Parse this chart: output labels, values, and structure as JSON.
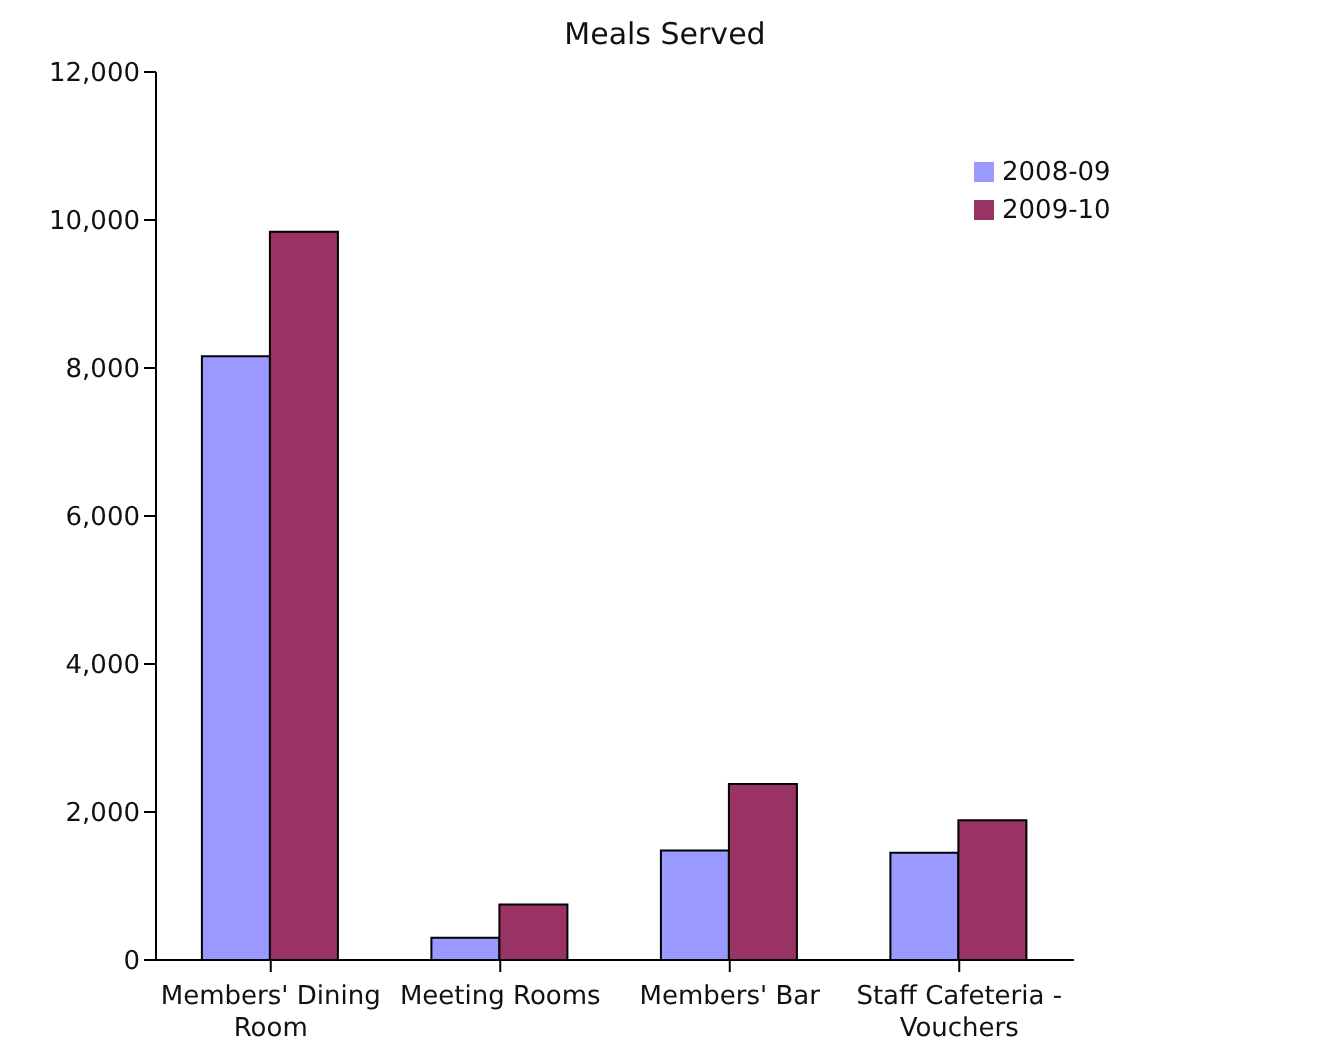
{
  "chart_data": {
    "type": "bar",
    "title": "Meals Served",
    "categories": [
      "Members' Dining Room",
      "Meeting Rooms",
      "Members' Bar",
      "Staff Cafeteria - Vouchers"
    ],
    "series": [
      {
        "name": "2008-09",
        "color": "#9999ff",
        "values": [
          8160,
          300,
          1480,
          1450
        ]
      },
      {
        "name": "2009-10",
        "color": "#993366",
        "values": [
          9840,
          750,
          2380,
          1890
        ]
      }
    ],
    "ylim": [
      0,
      12000
    ],
    "yticks": [
      0,
      {
        "value": 2000,
        "label": "2,000"
      },
      {
        "value": 4000,
        "label": "4,000"
      },
      {
        "value": 6000,
        "label": "6,000"
      },
      {
        "value": 8000,
        "label": "8,000"
      },
      {
        "value": 10000,
        "label": "10,000"
      },
      {
        "value": 12000,
        "label": "12,000"
      }
    ],
    "grid": false,
    "legend": "top right"
  }
}
